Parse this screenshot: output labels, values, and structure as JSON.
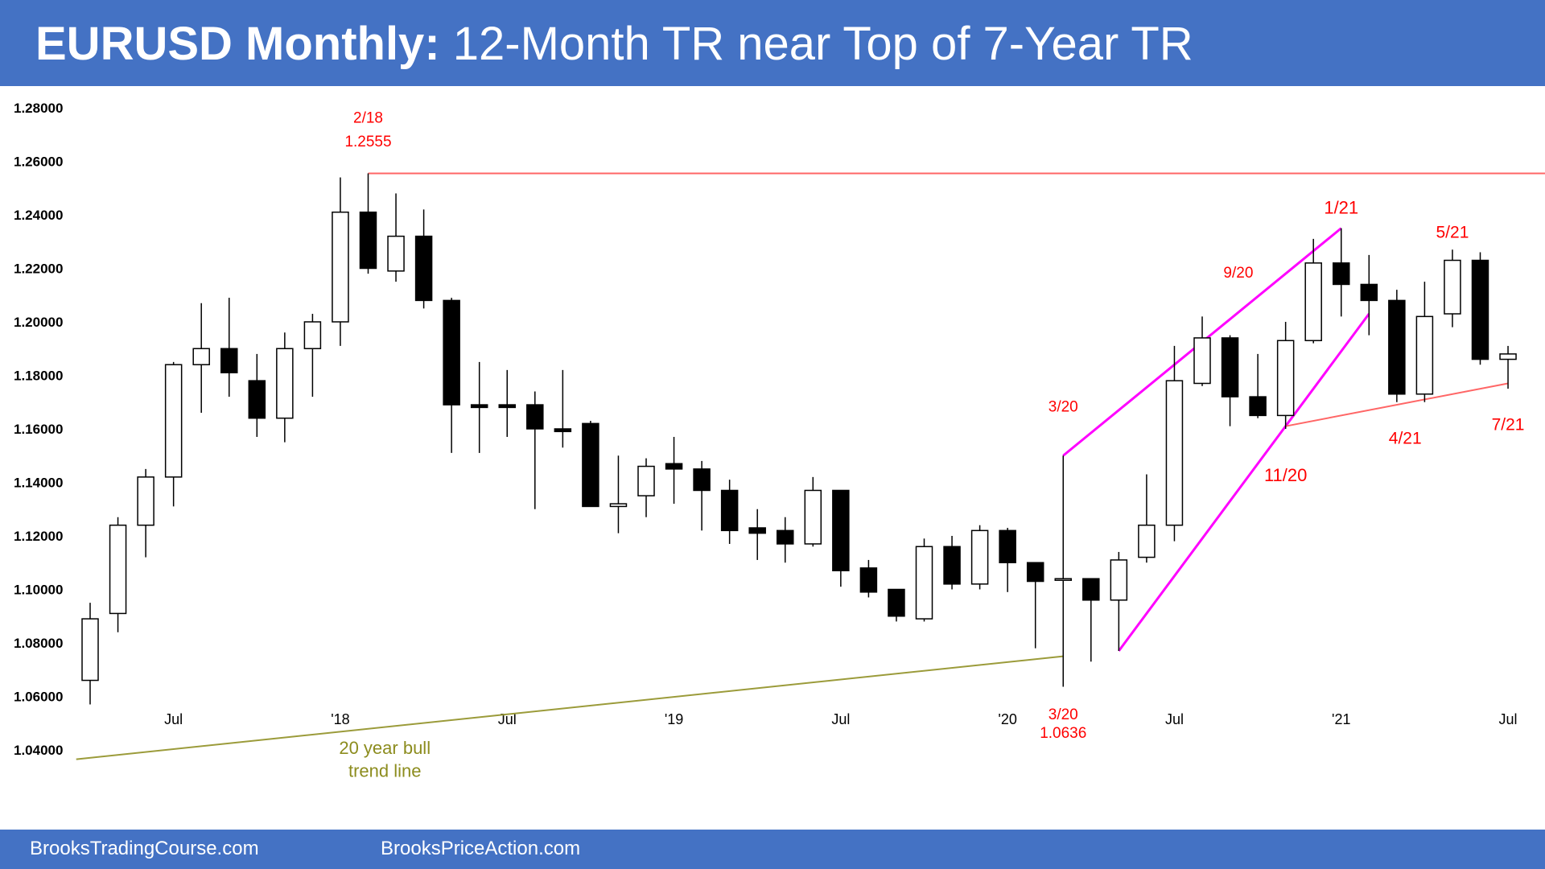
{
  "title": {
    "bold": "EURUSD Monthly:",
    "rest": " 12-Month TR near Top of 7-Year TR"
  },
  "footer": {
    "left": "BrooksTradingCourse.com",
    "right": "BrooksPriceAction.com"
  },
  "colors": {
    "banner": "#4472C4",
    "bull_candle": "#FFFFFF",
    "bear_candle": "#000000",
    "channel": "#FF00FF",
    "resistance": "#FF6666",
    "trend_line": "#9B9B3A",
    "annotation": "#FF0000"
  },
  "chart_data": {
    "type": "candlestick",
    "ylim": [
      1.03,
      1.285
    ],
    "yticks": [
      "1.28000",
      "1.26000",
      "1.24000",
      "1.22000",
      "1.20000",
      "1.18000",
      "1.16000",
      "1.14000",
      "1.12000",
      "1.10000",
      "1.08000",
      "1.06000",
      "1.04000"
    ],
    "xticks": [
      {
        "label": "Jul",
        "index": 3
      },
      {
        "label": "'18",
        "index": 9
      },
      {
        "label": "Jul",
        "index": 15
      },
      {
        "label": "'19",
        "index": 21
      },
      {
        "label": "Jul",
        "index": 27
      },
      {
        "label": "'20",
        "index": 33
      },
      {
        "label": "Jul",
        "index": 39
      },
      {
        "label": "'21",
        "index": 45
      },
      {
        "label": "Jul",
        "index": 51
      }
    ],
    "candles": [
      {
        "o": 1.066,
        "h": 1.095,
        "l": 1.057,
        "c": 1.089
      },
      {
        "o": 1.091,
        "h": 1.127,
        "l": 1.084,
        "c": 1.124
      },
      {
        "o": 1.124,
        "h": 1.145,
        "l": 1.112,
        "c": 1.142
      },
      {
        "o": 1.142,
        "h": 1.185,
        "l": 1.131,
        "c": 1.184
      },
      {
        "o": 1.184,
        "h": 1.207,
        "l": 1.166,
        "c": 1.19
      },
      {
        "o": 1.19,
        "h": 1.209,
        "l": 1.172,
        "c": 1.181
      },
      {
        "o": 1.178,
        "h": 1.188,
        "l": 1.157,
        "c": 1.164
      },
      {
        "o": 1.164,
        "h": 1.196,
        "l": 1.155,
        "c": 1.19
      },
      {
        "o": 1.19,
        "h": 1.203,
        "l": 1.172,
        "c": 1.2
      },
      {
        "o": 1.2,
        "h": 1.254,
        "l": 1.191,
        "c": 1.241
      },
      {
        "o": 1.241,
        "h": 1.2555,
        "l": 1.218,
        "c": 1.22
      },
      {
        "o": 1.219,
        "h": 1.248,
        "l": 1.215,
        "c": 1.232
      },
      {
        "o": 1.232,
        "h": 1.242,
        "l": 1.205,
        "c": 1.208
      },
      {
        "o": 1.208,
        "h": 1.209,
        "l": 1.151,
        "c": 1.169
      },
      {
        "o": 1.169,
        "h": 1.185,
        "l": 1.151,
        "c": 1.168
      },
      {
        "o": 1.169,
        "h": 1.182,
        "l": 1.157,
        "c": 1.168
      },
      {
        "o": 1.169,
        "h": 1.174,
        "l": 1.13,
        "c": 1.16
      },
      {
        "o": 1.16,
        "h": 1.182,
        "l": 1.153,
        "c": 1.159
      },
      {
        "o": 1.162,
        "h": 1.163,
        "l": 1.131,
        "c": 1.131
      },
      {
        "o": 1.131,
        "h": 1.15,
        "l": 1.121,
        "c": 1.132
      },
      {
        "o": 1.135,
        "h": 1.149,
        "l": 1.127,
        "c": 1.146
      },
      {
        "o": 1.147,
        "h": 1.157,
        "l": 1.132,
        "c": 1.145
      },
      {
        "o": 1.145,
        "h": 1.148,
        "l": 1.122,
        "c": 1.137
      },
      {
        "o": 1.137,
        "h": 1.141,
        "l": 1.117,
        "c": 1.122
      },
      {
        "o": 1.123,
        "h": 1.13,
        "l": 1.111,
        "c": 1.121
      },
      {
        "o": 1.122,
        "h": 1.127,
        "l": 1.11,
        "c": 1.117
      },
      {
        "o": 1.117,
        "h": 1.142,
        "l": 1.116,
        "c": 1.137
      },
      {
        "o": 1.137,
        "h": 1.137,
        "l": 1.101,
        "c": 1.107
      },
      {
        "o": 1.108,
        "h": 1.111,
        "l": 1.097,
        "c": 1.099
      },
      {
        "o": 1.1,
        "h": 1.1,
        "l": 1.088,
        "c": 1.09
      },
      {
        "o": 1.089,
        "h": 1.119,
        "l": 1.088,
        "c": 1.116
      },
      {
        "o": 1.116,
        "h": 1.12,
        "l": 1.1,
        "c": 1.102
      },
      {
        "o": 1.102,
        "h": 1.124,
        "l": 1.1,
        "c": 1.122
      },
      {
        "o": 1.122,
        "h": 1.123,
        "l": 1.099,
        "c": 1.11
      },
      {
        "o": 1.11,
        "h": 1.11,
        "l": 1.078,
        "c": 1.103
      },
      {
        "o": 1.104,
        "h": 1.15,
        "l": 1.0636,
        "c": 1.104
      },
      {
        "o": 1.104,
        "h": 1.104,
        "l": 1.073,
        "c": 1.096
      },
      {
        "o": 1.096,
        "h": 1.114,
        "l": 1.077,
        "c": 1.111
      },
      {
        "o": 1.112,
        "h": 1.143,
        "l": 1.11,
        "c": 1.124
      },
      {
        "o": 1.124,
        "h": 1.191,
        "l": 1.118,
        "c": 1.178
      },
      {
        "o": 1.177,
        "h": 1.202,
        "l": 1.176,
        "c": 1.194
      },
      {
        "o": 1.194,
        "h": 1.195,
        "l": 1.161,
        "c": 1.172
      },
      {
        "o": 1.172,
        "h": 1.188,
        "l": 1.164,
        "c": 1.165
      },
      {
        "o": 1.165,
        "h": 1.2,
        "l": 1.16,
        "c": 1.193
      },
      {
        "o": 1.193,
        "h": 1.231,
        "l": 1.192,
        "c": 1.222
      },
      {
        "o": 1.222,
        "h": 1.235,
        "l": 1.202,
        "c": 1.214
      },
      {
        "o": 1.214,
        "h": 1.225,
        "l": 1.195,
        "c": 1.208
      },
      {
        "o": 1.208,
        "h": 1.212,
        "l": 1.17,
        "c": 1.173
      },
      {
        "o": 1.173,
        "h": 1.215,
        "l": 1.17,
        "c": 1.202
      },
      {
        "o": 1.203,
        "h": 1.227,
        "l": 1.198,
        "c": 1.223
      },
      {
        "o": 1.223,
        "h": 1.226,
        "l": 1.184,
        "c": 1.186
      },
      {
        "o": 1.186,
        "h": 1.191,
        "l": 1.175,
        "c": 1.188
      }
    ],
    "lines": [
      {
        "name": "resistance",
        "from": {
          "i": 10,
          "p": 1.2555
        },
        "to": {
          "i": 53.5,
          "p": 1.2555
        }
      },
      {
        "name": "bull-channel-upper",
        "from": {
          "i": 35,
          "p": 1.15
        },
        "to": {
          "i": 45,
          "p": 1.235
        }
      },
      {
        "name": "bull-channel-lower",
        "from": {
          "i": 37,
          "p": 1.077
        },
        "to": {
          "i": 46,
          "p": 1.203
        }
      },
      {
        "name": "range-low-line",
        "from": {
          "i": 43,
          "p": 1.161
        },
        "to": {
          "i": 51,
          "p": 1.177
        }
      },
      {
        "name": "20-year-trend-line",
        "from": {
          "i": -0.5,
          "p": 1.0365
        },
        "to": {
          "i": 35,
          "p": 1.075
        }
      }
    ],
    "annotations": [
      {
        "text": "2/18",
        "i": 10,
        "p": 1.2745,
        "size": 19,
        "color": "red"
      },
      {
        "text": "1.2555",
        "i": 10,
        "p": 1.2655,
        "size": 19,
        "color": "red"
      },
      {
        "text": "1/21",
        "i": 45,
        "p": 1.2405,
        "size": 22,
        "color": "red"
      },
      {
        "text": "5/21",
        "i": 49,
        "p": 1.2315,
        "size": 21,
        "color": "red"
      },
      {
        "text": "9/20",
        "i": 41.3,
        "p": 1.2165,
        "size": 19,
        "color": "red"
      },
      {
        "text": "3/20",
        "i": 35,
        "p": 1.1665,
        "size": 19,
        "color": "red"
      },
      {
        "text": "3/20",
        "i": 35,
        "p": 1.0515,
        "size": 19,
        "color": "red"
      },
      {
        "text": "1.0636",
        "i": 35,
        "p": 1.0445,
        "size": 19,
        "color": "red"
      },
      {
        "text": "11/20",
        "i": 43,
        "p": 1.1405,
        "size": 22,
        "color": "red"
      },
      {
        "text": "4/21",
        "i": 47.3,
        "p": 1.1545,
        "size": 21,
        "color": "red"
      },
      {
        "text": "7/21",
        "i": 51,
        "p": 1.1595,
        "size": 21,
        "color": "red"
      },
      {
        "text": "20 year bull",
        "i": 10.6,
        "p": 1.0385,
        "size": 22,
        "color": "olive"
      },
      {
        "text": "trend line",
        "i": 10.6,
        "p": 1.03,
        "size": 22,
        "color": "olive"
      }
    ]
  }
}
